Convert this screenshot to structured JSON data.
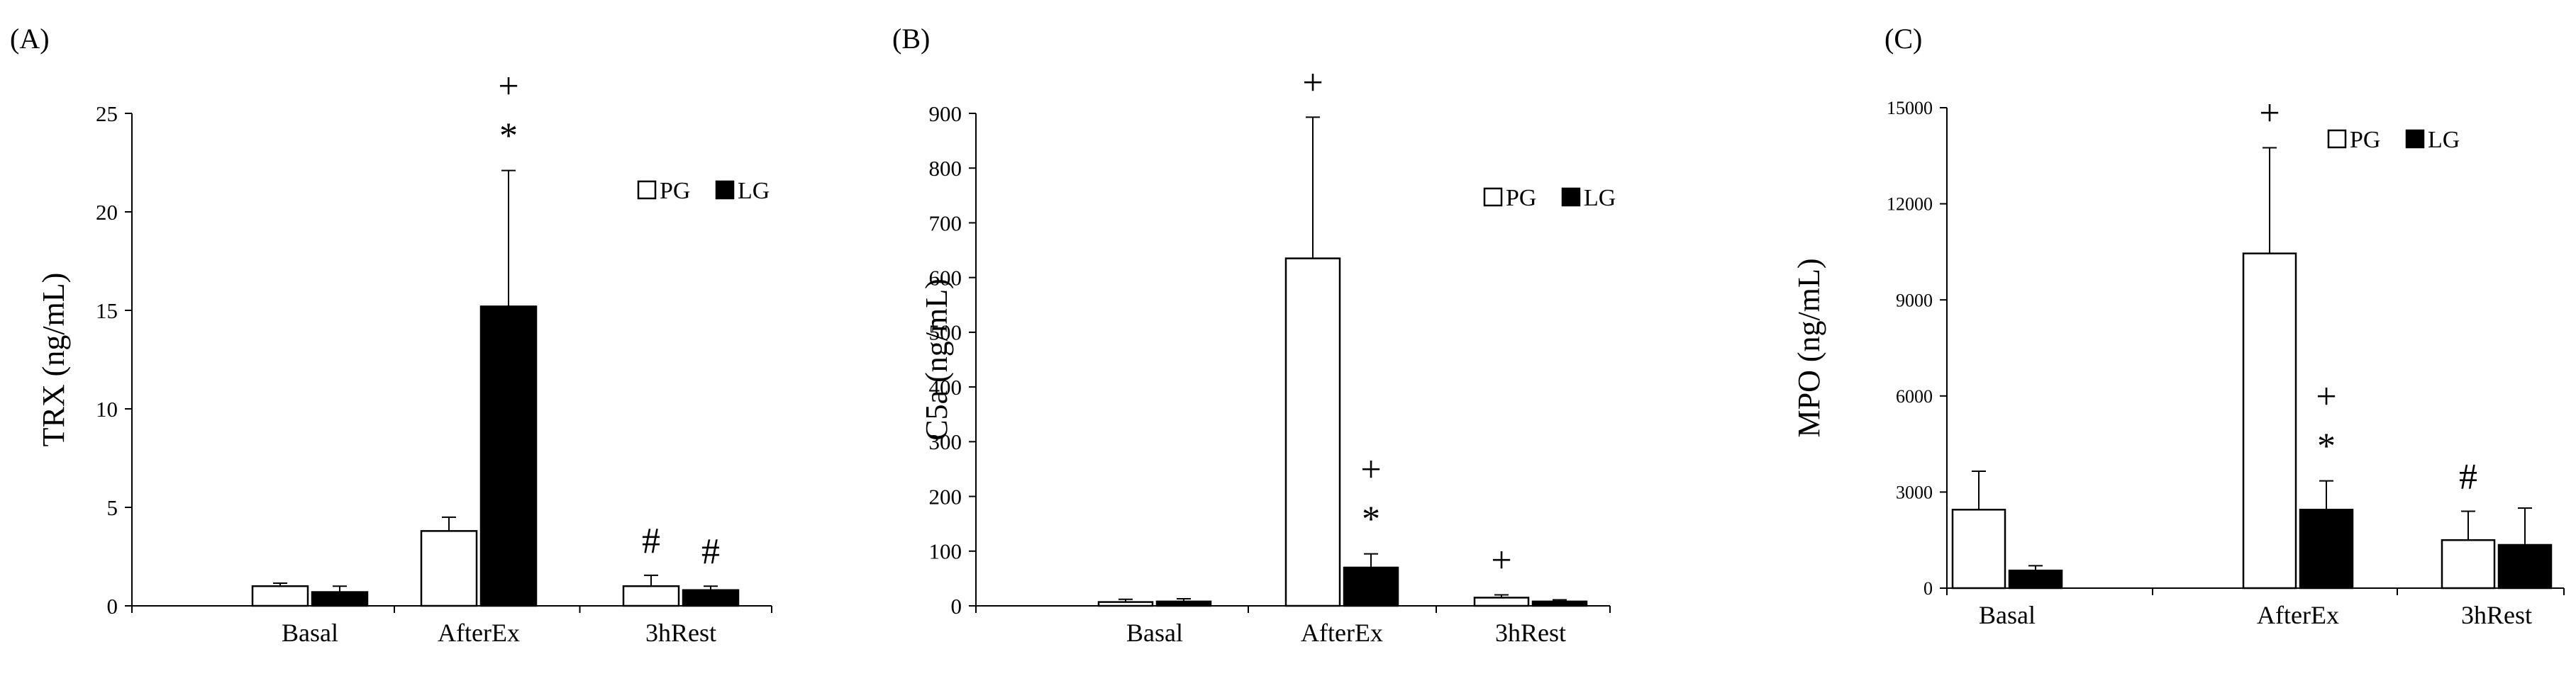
{
  "chart_data": [
    {
      "type": "bar",
      "panel_label": "(A)",
      "ylabel": "TRX (ng/mL)",
      "categories": [
        "Basal",
        "AfterEx",
        "3hRest"
      ],
      "ylim": [
        0,
        25
      ],
      "yticks": [
        0,
        5,
        10,
        15,
        20,
        25
      ],
      "grid": false,
      "legend_position": "top-right",
      "series": [
        {
          "name": "PG",
          "fill": "#ffffff",
          "values": [
            1.0,
            3.8,
            1.0
          ],
          "errors": [
            0.15,
            0.7,
            0.55
          ]
        },
        {
          "name": "LG",
          "fill": "#000000",
          "values": [
            0.7,
            15.2,
            0.8
          ],
          "errors": [
            0.3,
            6.9,
            0.2
          ]
        }
      ],
      "annotations": [
        {
          "category": 1,
          "series": 1,
          "lines": [
            "+",
            "*"
          ]
        },
        {
          "category": 2,
          "series": 0,
          "lines": [
            "#"
          ]
        },
        {
          "category": 2,
          "series": 1,
          "lines": [
            "#"
          ]
        }
      ]
    },
    {
      "type": "bar",
      "panel_label": "(B)",
      "ylabel": "C5a (ng/mL)",
      "categories": [
        "Basal",
        "AfterEx",
        "3hRest"
      ],
      "ylim": [
        0,
        900
      ],
      "yticks": [
        0,
        100,
        200,
        300,
        400,
        500,
        600,
        700,
        800,
        900
      ],
      "grid": false,
      "legend_position": "top-right",
      "series": [
        {
          "name": "PG",
          "fill": "#ffffff",
          "values": [
            7,
            635,
            15
          ],
          "errors": [
            5,
            258,
            5
          ]
        },
        {
          "name": "LG",
          "fill": "#000000",
          "values": [
            8,
            70,
            8
          ],
          "errors": [
            5,
            25,
            3
          ]
        }
      ],
      "annotations": [
        {
          "category": 1,
          "series": 0,
          "lines": [
            "+"
          ]
        },
        {
          "category": 1,
          "series": 1,
          "lines": [
            "+",
            "*"
          ]
        },
        {
          "category": 2,
          "series": 0,
          "lines": [
            "+"
          ]
        }
      ]
    },
    {
      "type": "bar",
      "panel_label": "(C)",
      "ylabel": "MPO (ng/mL)",
      "categories": [
        "Basal",
        "AfterEx",
        "3hRest"
      ],
      "ylim": [
        0,
        15000
      ],
      "yticks": [
        0,
        3000,
        6000,
        9000,
        12000,
        15000
      ],
      "grid": false,
      "legend_position": "top-right",
      "series": [
        {
          "name": "PG",
          "fill": "#ffffff",
          "values": [
            2450,
            10450,
            1500
          ],
          "errors": [
            1200,
            3300,
            900
          ]
        },
        {
          "name": "LG",
          "fill": "#000000",
          "values": [
            550,
            2450,
            1350
          ],
          "errors": [
            150,
            900,
            1150
          ]
        }
      ],
      "annotations": [
        {
          "category": 1,
          "series": 0,
          "lines": [
            "+"
          ]
        },
        {
          "category": 1,
          "series": 1,
          "lines": [
            "+",
            "*"
          ]
        },
        {
          "category": 2,
          "series": 0,
          "lines": [
            "#"
          ]
        }
      ]
    }
  ]
}
